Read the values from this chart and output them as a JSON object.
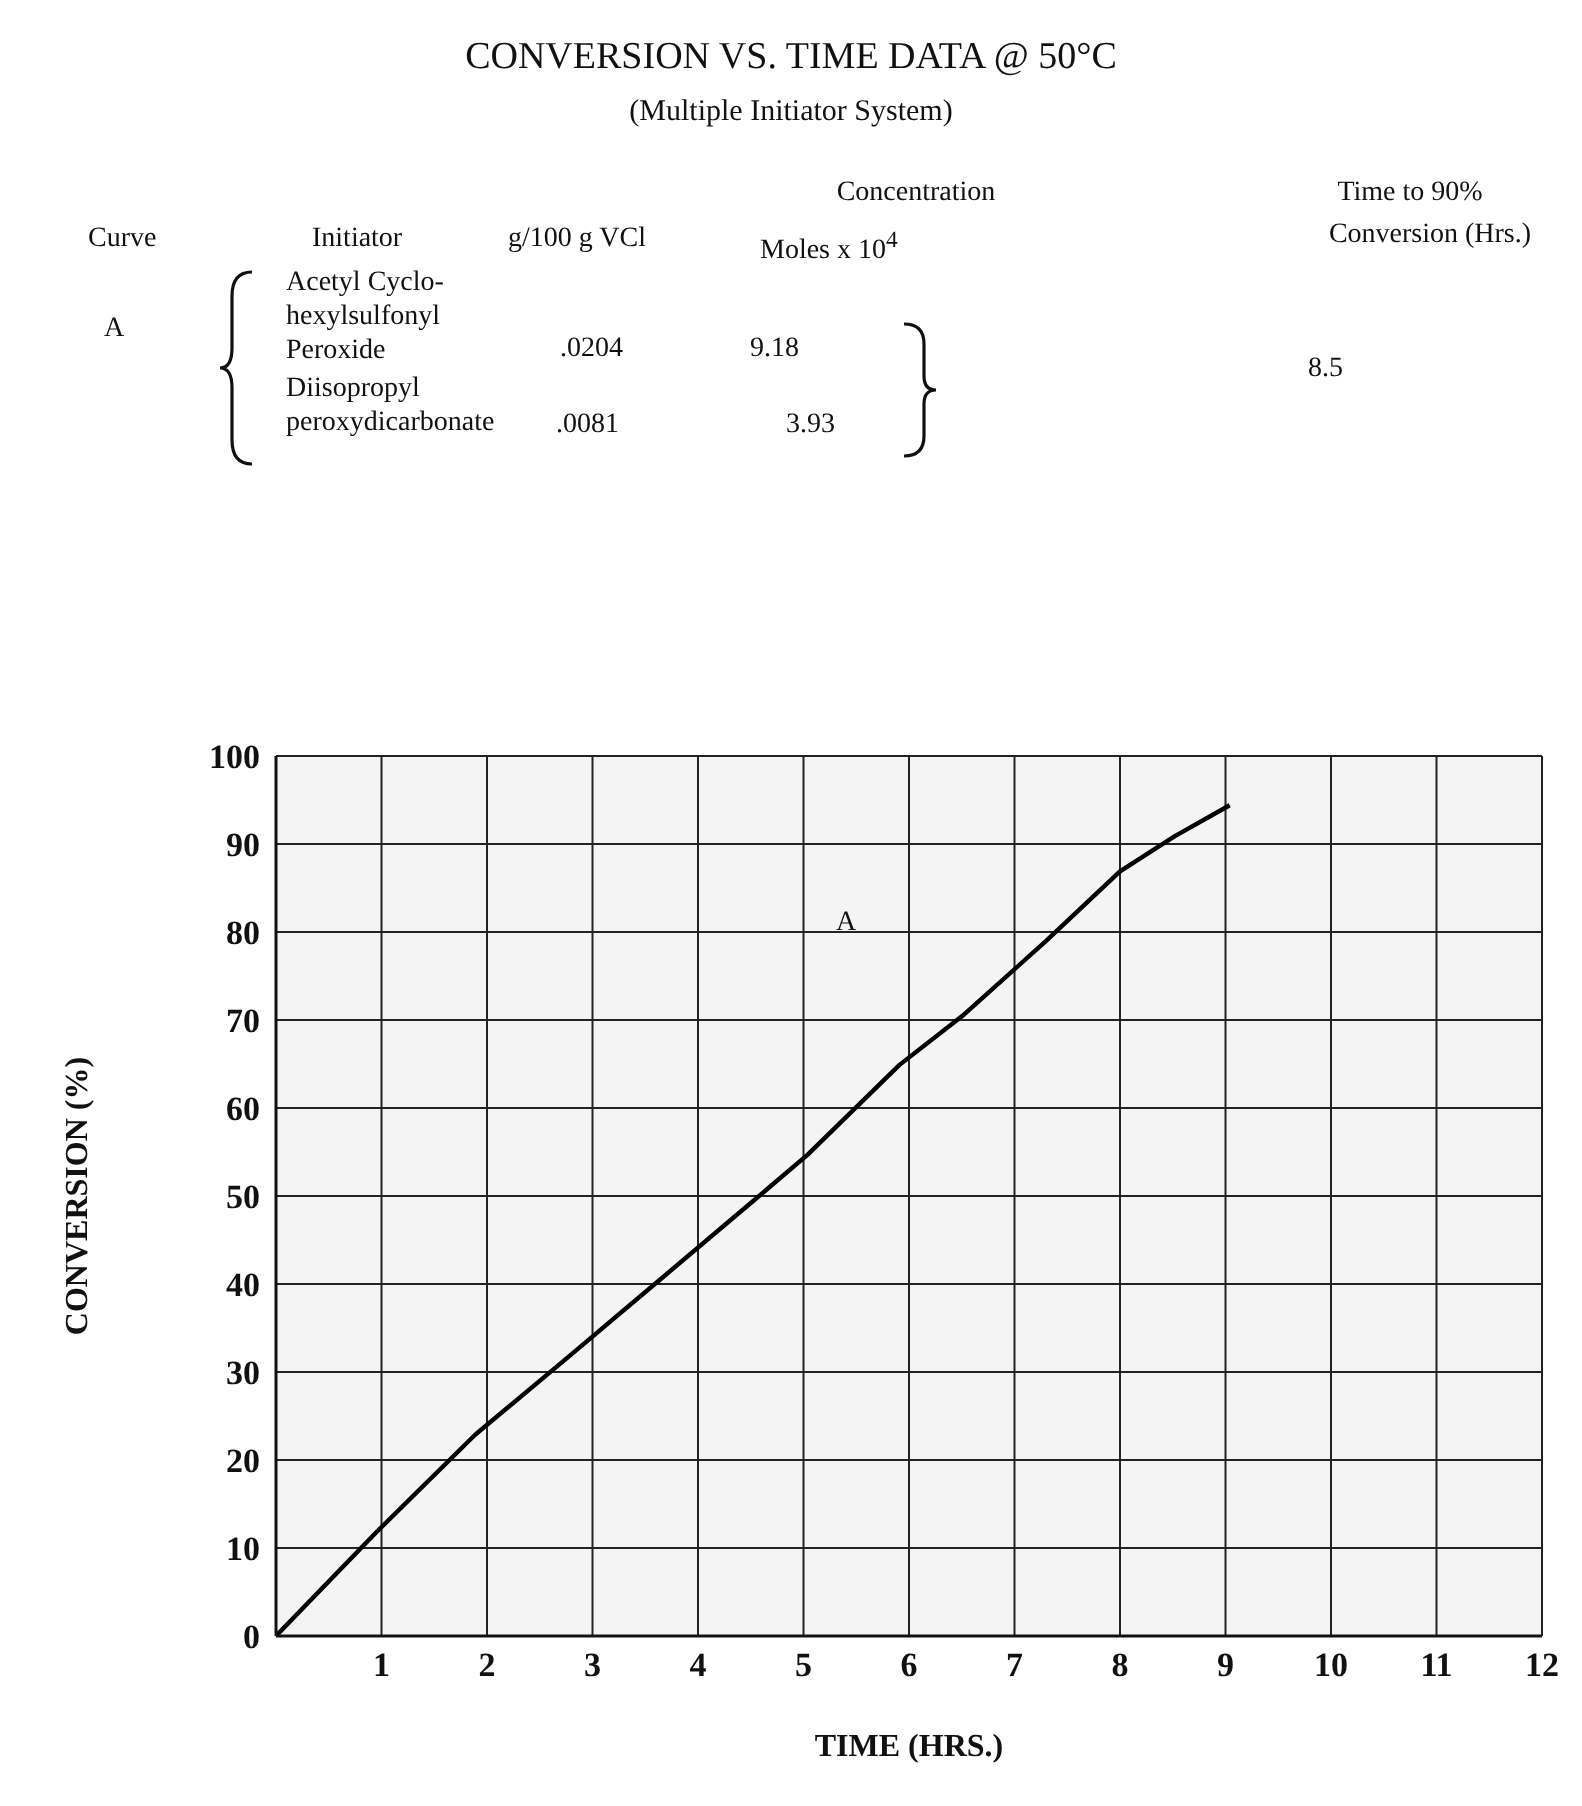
{
  "chart_data": {
    "type": "line",
    "title": "CONVERSION VS. TIME DATA @ 50°C",
    "subtitle": "(Multiple Initiator System)",
    "xlabel": "TIME (HRS.)",
    "ylabel": "CONVERSION (%)",
    "annotations": [
      "Curve",
      "Initiator",
      "Concentration",
      "g/100 g VCl",
      "Moles x 10$^{4}$",
      "Time to 90%",
      "Conversion (Hrs.)",
      "A",
      "Acetyl Cyclo-hexylsulfonyl Peroxide",
      ".0204",
      "9.18",
      "Diisopropyl peroxydicarbonate",
      ".0081",
      "3.93",
      "8.5",
      "A"
    ],
    "x": [
      0,
      0.96,
      1.89,
      2.78,
      3.65,
      4.52,
      5.04,
      5.91,
      6.52,
      7.3,
      8.0,
      8.52,
      9.04
    ],
    "series": [
      {
        "color": "#000000",
        "values": [
          0,
          11.9,
          22.9,
          31.8,
          40.6,
          49.4,
          54.7,
          64.9,
          70.6,
          79,
          86.9,
          90.9,
          94.4
        ]
      }
    ],
    "xlim": [
      0,
      12
    ],
    "xticks": [
      1,
      2,
      3,
      4,
      5,
      6,
      7,
      8,
      9,
      10,
      11,
      12
    ],
    "ylim": [
      0,
      100
    ],
    "yticks": [
      0,
      10,
      20,
      30,
      40,
      50,
      60,
      70,
      80,
      90,
      100
    ],
    "grid": true,
    "legend": false,
    "marker": "none",
    "line_style": "solid"
  }
}
